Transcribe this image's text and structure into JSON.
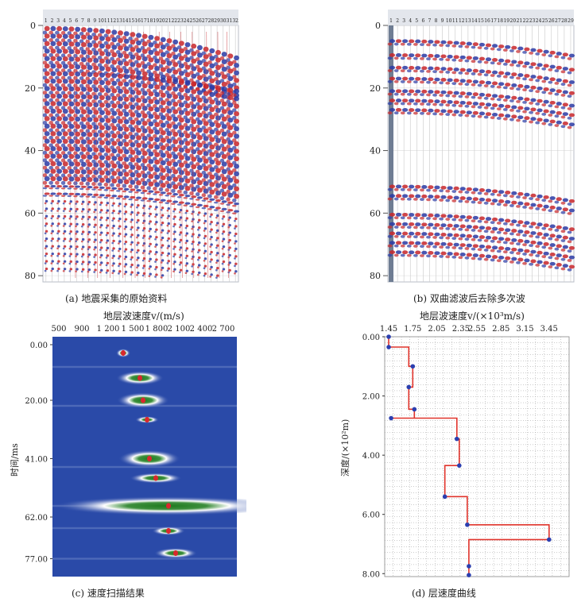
{
  "captions": {
    "a": "(a) 地震采集的原始资料",
    "b": "(b) 双曲滤波后去除多次波",
    "c": "(c) 速度扫描结果",
    "d": "(d) 层速度曲线"
  },
  "seismic_raw": {
    "trace_labels": [
      "1",
      "2",
      "3",
      "4",
      "5",
      "6",
      "7",
      "8",
      "9",
      "10",
      "11",
      "12",
      "13",
      "14",
      "15",
      "16",
      "17",
      "18",
      "19",
      "20",
      "21",
      "22",
      "23",
      "24",
      "25",
      "26",
      "27",
      "28",
      "29",
      "30",
      "31",
      "32"
    ],
    "y_ticks": [
      "0",
      "20",
      "40",
      "60",
      "80"
    ]
  },
  "seismic_filtered": {
    "trace_labels": [
      "1",
      "2",
      "3",
      "4",
      "5",
      "6",
      "7",
      "8",
      "9",
      "10",
      "11",
      "12",
      "13",
      "14",
      "15",
      "16",
      "17",
      "18",
      "19",
      "20",
      "21",
      "22",
      "23",
      "24",
      "25",
      "26",
      "27",
      "28",
      "29"
    ],
    "y_ticks": [
      "0",
      "20",
      "40",
      "60",
      "80"
    ]
  },
  "velocity_scan": {
    "title": "地层波速度v/(m/s)",
    "x_ticks": [
      "500",
      "900",
      "1 200",
      "1 500",
      "1 800",
      "2 100",
      "2 400",
      "2 700"
    ],
    "ylabel": "时间/ms",
    "y_ticks": [
      "0.00",
      "20.00",
      "41.00",
      "62.00",
      "77.00"
    ],
    "colors": {
      "background": "#2a4aa8",
      "core": "#1e7a1e",
      "halo": "#ffffff"
    }
  },
  "chart_data": {
    "type": "line",
    "title": "地层波速度v/(×10³m/s)",
    "ylabel": "深度/(×10²m)",
    "x_ticks": [
      "1.45",
      "1.75",
      "2.05",
      "2.35",
      "2.55",
      "2.85",
      "3.15",
      "3.45"
    ],
    "y_ticks": [
      "0.00",
      "2.00",
      "4.00",
      "6.00",
      "8.00"
    ],
    "xlim": [
      1.4,
      3.7
    ],
    "ylim": [
      8.1,
      0
    ],
    "series": [
      {
        "x": [
          1.45,
          1.45,
          1.7,
          1.7,
          1.75,
          1.75,
          1.7,
          1.7,
          1.77,
          1.77,
          1.48,
          1.48,
          2.3,
          2.3,
          2.33,
          2.33,
          2.15,
          2.15,
          2.43,
          2.43,
          3.45,
          3.45,
          2.45,
          2.45
        ],
        "y": [
          0.0,
          0.35,
          0.35,
          1.0,
          1.0,
          1.7,
          1.7,
          2.45,
          2.45,
          2.75,
          2.75,
          2.75,
          2.75,
          3.45,
          3.45,
          4.35,
          4.35,
          5.4,
          5.4,
          6.35,
          6.35,
          6.85,
          6.85,
          8.05
        ]
      }
    ],
    "points": [
      {
        "x": 1.45,
        "y": 0.0
      },
      {
        "x": 1.45,
        "y": 0.35
      },
      {
        "x": 1.75,
        "y": 1.0
      },
      {
        "x": 1.7,
        "y": 1.7
      },
      {
        "x": 1.77,
        "y": 2.45
      },
      {
        "x": 1.48,
        "y": 2.75
      },
      {
        "x": 2.3,
        "y": 3.45
      },
      {
        "x": 2.33,
        "y": 4.35
      },
      {
        "x": 2.15,
        "y": 5.4
      },
      {
        "x": 2.43,
        "y": 6.35
      },
      {
        "x": 3.45,
        "y": 6.85
      },
      {
        "x": 2.45,
        "y": 7.75
      },
      {
        "x": 2.45,
        "y": 8.05
      }
    ],
    "colors": {
      "line": "#e0332b",
      "point": "#2b3fb0",
      "grid": "#9a9a9a"
    }
  }
}
